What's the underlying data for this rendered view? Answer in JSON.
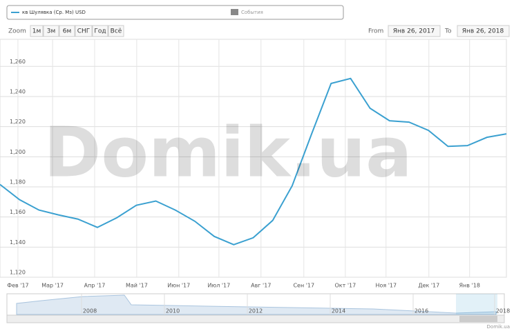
{
  "chart_data": {
    "type": "line",
    "legend": {
      "series_label": "кв Шулявка (Ср. Мз) USD",
      "events_label": "События"
    },
    "range_selector": {
      "zoom_label": "Zoom",
      "buttons": [
        "1м",
        "3м",
        "6м",
        "СНГ",
        "Год",
        "Всё"
      ],
      "from_label": "From",
      "from": "Янв 26, 2017",
      "to_label": "To",
      "to": "Янв 26, 2018"
    },
    "watermark": "Domik.ua",
    "series": [
      {
        "name": "кв Шулявка (Ср. Мз) USD",
        "color": "#3aa0d0",
        "values": [
          1181.6,
          1171.5,
          1164.6,
          1161.4,
          1158.6,
          1153.1,
          1159.5,
          1167.8,
          1170.6,
          1164.6,
          1157.2,
          1147.1,
          1141.6,
          1146.2,
          1157.7,
          1180.7,
          1215.2,
          1248.7,
          1252,
          1232.2,
          1223.9,
          1223,
          1217.5,
          1206.9,
          1207.4,
          1212.9,
          1215.2
        ]
      }
    ],
    "xlim": [
      0,
      26
    ],
    "xticks": [
      {
        "value": 0.92,
        "label": "Фев '17"
      },
      {
        "value": 2.7,
        "label": "Мар '17"
      },
      {
        "value": 4.86,
        "label": "Апр '17"
      },
      {
        "value": 7.02,
        "label": "Май '17"
      },
      {
        "value": 9.18,
        "label": "Июн '17"
      },
      {
        "value": 11.24,
        "label": "Июл '17"
      },
      {
        "value": 13.4,
        "label": "Авг '17"
      },
      {
        "value": 15.6,
        "label": "Сен '17"
      },
      {
        "value": 17.73,
        "label": "Окт '17"
      },
      {
        "value": 19.82,
        "label": "Ноя '17"
      },
      {
        "value": 22.02,
        "label": "Дек '17"
      },
      {
        "value": 24.11,
        "label": "Янв '18"
      }
    ],
    "ylim": [
      1120,
      1278
    ],
    "yticks": [
      {
        "value": 1120,
        "label": "1,120"
      },
      {
        "value": 1140,
        "label": "1,140"
      },
      {
        "value": 1160,
        "label": "1,160"
      },
      {
        "value": 1180,
        "label": "1,180"
      },
      {
        "value": 1200,
        "label": "1,200"
      },
      {
        "value": 1220,
        "label": "1,220"
      },
      {
        "value": 1240,
        "label": "1,240"
      },
      {
        "value": 1260,
        "label": "1,260"
      }
    ],
    "grid": true,
    "navigator_labels": [
      "2008",
      "2010",
      "2012",
      "2014",
      "2016",
      "2018"
    ],
    "credit": "Domik.ua"
  }
}
